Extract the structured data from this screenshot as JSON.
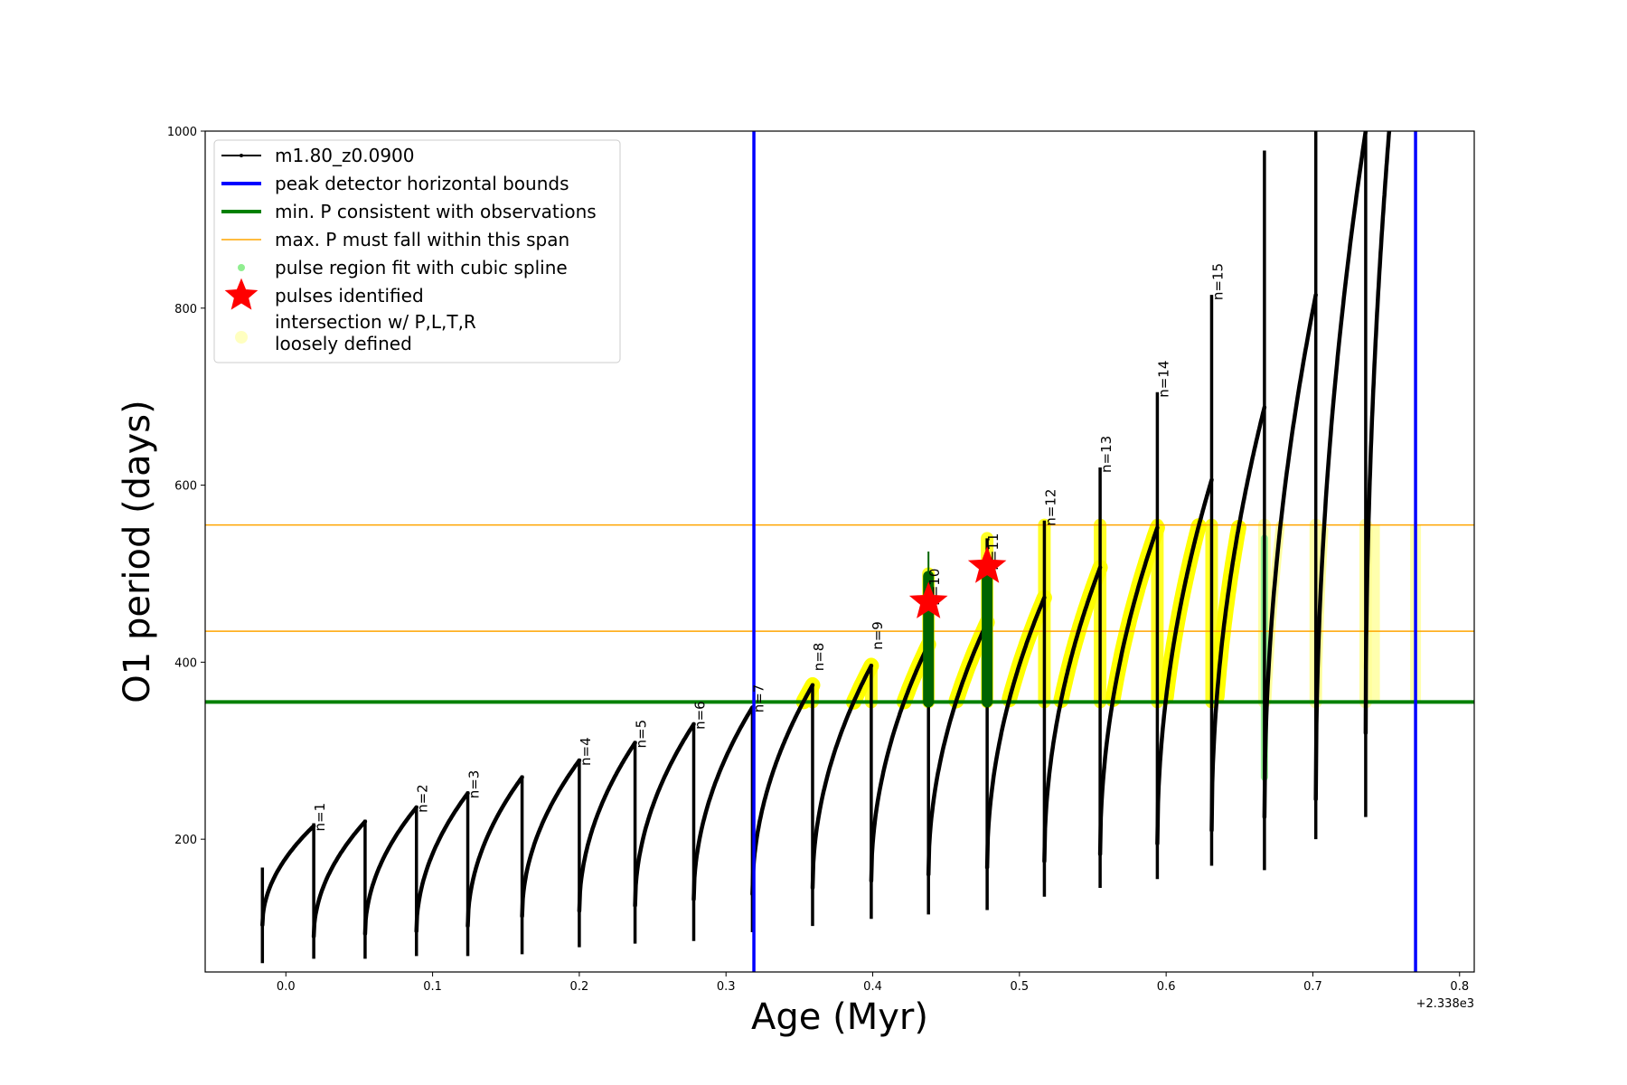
{
  "chart_data": {
    "type": "line",
    "xlabel": "Age (Myr)",
    "ylabel": "O1 period (days)",
    "x_offset_label": "+2.338e3",
    "xlim": [
      -0.055,
      0.81
    ],
    "ylim": [
      50,
      1000
    ],
    "xticks": [
      {
        "value": 0.0,
        "label": "0.0"
      },
      {
        "value": 0.1,
        "label": "0.1"
      },
      {
        "value": 0.2,
        "label": "0.2"
      },
      {
        "value": 0.3,
        "label": "0.3"
      },
      {
        "value": 0.4,
        "label": "0.4"
      },
      {
        "value": 0.5,
        "label": "0.5"
      },
      {
        "value": 0.6,
        "label": "0.6"
      },
      {
        "value": 0.7,
        "label": "0.7"
      },
      {
        "value": 0.8,
        "label": "0.8"
      }
    ],
    "yticks": [
      {
        "value": 200,
        "label": "200"
      },
      {
        "value": 400,
        "label": "400"
      },
      {
        "value": 600,
        "label": "600"
      },
      {
        "value": 800,
        "label": "800"
      },
      {
        "value": 1000,
        "label": "1000"
      }
    ],
    "legend_position": "top-left",
    "legend": [
      {
        "label": "m1.80_z0.0900",
        "marker": "line-dot",
        "color": "#000000"
      },
      {
        "label": "peak detector horizontal bounds",
        "marker": "line",
        "color": "#0000ff"
      },
      {
        "label": "min. P consistent with observations",
        "marker": "line",
        "color": "#008000"
      },
      {
        "label": "max. P must fall within this span",
        "marker": "thin-line",
        "color": "#ffa500"
      },
      {
        "label": "pulse region fit with cubic spline",
        "marker": "dot",
        "color": "#90ee90"
      },
      {
        "label": "pulses identified",
        "marker": "star",
        "color": "#ff0000"
      },
      {
        "label": "intersection w/ P,L,T,R",
        "label2": "loosely defined",
        "marker": "big-dot",
        "color": "#ffffc0"
      }
    ],
    "vertical_bounds": [
      0.319,
      0.77
    ],
    "min_period": 355,
    "max_period_span": [
      435,
      555
    ],
    "colors": {
      "track": "#000000",
      "bounds": "#0000ff",
      "minP": "#008000",
      "maxP": "#ffa500",
      "spline": "#90ee90",
      "star": "#ff0000",
      "highlight": "#ffff00",
      "highlight_pale": "#ffff99",
      "cycle_fill": "#006400"
    },
    "cycles": [
      {
        "start": -0.016,
        "end": 0.019,
        "min": 103,
        "peak": 215
      },
      {
        "start": 0.019,
        "end": 0.054,
        "min": 90,
        "peak": 220
      },
      {
        "start": 0.054,
        "end": 0.089,
        "min": 93,
        "peak": 236
      },
      {
        "start": 0.089,
        "end": 0.124,
        "min": 96,
        "peak": 252
      },
      {
        "start": 0.124,
        "end": 0.161,
        "min": 102,
        "peak": 270
      },
      {
        "start": 0.161,
        "end": 0.2,
        "min": 113,
        "peak": 289
      },
      {
        "start": 0.2,
        "end": 0.238,
        "min": 119,
        "peak": 309
      },
      {
        "start": 0.238,
        "end": 0.278,
        "min": 125,
        "peak": 330
      },
      {
        "start": 0.278,
        "end": 0.318,
        "min": 132,
        "peak": 349
      },
      {
        "start": 0.318,
        "end": 0.359,
        "min": 138,
        "peak": 374
      },
      {
        "start": 0.359,
        "end": 0.399,
        "min": 145,
        "peak": 396
      },
      {
        "start": 0.399,
        "end": 0.438,
        "min": 153,
        "peak": 420
      },
      {
        "start": 0.438,
        "end": 0.478,
        "min": 160,
        "peak": 445
      },
      {
        "start": 0.478,
        "end": 0.517,
        "min": 168,
        "peak": 473
      },
      {
        "start": 0.517,
        "end": 0.555,
        "min": 175,
        "peak": 507
      },
      {
        "start": 0.555,
        "end": 0.594,
        "min": 183,
        "peak": 552
      },
      {
        "start": 0.594,
        "end": 0.631,
        "min": 195,
        "peak": 606
      },
      {
        "start": 0.631,
        "end": 0.667,
        "min": 210,
        "peak": 688
      },
      {
        "start": 0.667,
        "end": 0.702,
        "min": 225,
        "peak": 815
      },
      {
        "start": 0.702,
        "end": 0.736,
        "min": 245,
        "peak": 1000
      },
      {
        "start": 0.736,
        "end": 0.752,
        "min": 320,
        "peak": 1000
      }
    ],
    "spikes": [
      {
        "x": -0.016,
        "low": 60,
        "high": 168
      },
      {
        "x": 0.019,
        "low": 65,
        "high": 218
      },
      {
        "x": 0.054,
        "low": 65,
        "high": 222
      },
      {
        "x": 0.089,
        "low": 68,
        "high": 238
      },
      {
        "x": 0.124,
        "low": 68,
        "high": 254
      },
      {
        "x": 0.161,
        "low": 70,
        "high": 272
      },
      {
        "x": 0.2,
        "low": 78,
        "high": 291
      },
      {
        "x": 0.238,
        "low": 82,
        "high": 311
      },
      {
        "x": 0.278,
        "low": 85,
        "high": 332
      },
      {
        "x": 0.318,
        "low": 95,
        "high": 350
      },
      {
        "x": 0.359,
        "low": 102,
        "high": 376
      },
      {
        "x": 0.399,
        "low": 110,
        "high": 398
      },
      {
        "x": 0.438,
        "low": 115,
        "high": 500
      },
      {
        "x": 0.478,
        "low": 120,
        "high": 540
      },
      {
        "x": 0.517,
        "low": 135,
        "high": 560
      },
      {
        "x": 0.555,
        "low": 145,
        "high": 620
      },
      {
        "x": 0.594,
        "low": 155,
        "high": 705
      },
      {
        "x": 0.631,
        "low": 170,
        "high": 815
      },
      {
        "x": 0.667,
        "low": 165,
        "high": 978
      },
      {
        "x": 0.702,
        "low": 200,
        "high": 1000
      },
      {
        "x": 0.736,
        "low": 225,
        "high": 1000
      }
    ],
    "pulse_labels": [
      {
        "text": "n=1",
        "x": 0.019,
        "y": 215
      },
      {
        "text": "n=2",
        "x": 0.089,
        "y": 236
      },
      {
        "text": "n=3",
        "x": 0.124,
        "y": 252
      },
      {
        "text": "n=4",
        "x": 0.2,
        "y": 289
      },
      {
        "text": "n=5",
        "x": 0.238,
        "y": 309
      },
      {
        "text": "n=6",
        "x": 0.278,
        "y": 330
      },
      {
        "text": "n=7",
        "x": 0.318,
        "y": 349
      },
      {
        "text": "n=8",
        "x": 0.359,
        "y": 396
      },
      {
        "text": "n=9",
        "x": 0.399,
        "y": 420
      },
      {
        "text": "n=10",
        "x": 0.438,
        "y": 470
      },
      {
        "text": "n=11",
        "x": 0.478,
        "y": 510
      },
      {
        "text": "n=12",
        "x": 0.517,
        "y": 560
      },
      {
        "text": "n=13",
        "x": 0.555,
        "y": 620
      },
      {
        "text": "n=14",
        "x": 0.594,
        "y": 705
      },
      {
        "text": "n=15",
        "x": 0.631,
        "y": 815
      }
    ],
    "pulses_identified": [
      {
        "x": 0.438,
        "y": 468
      },
      {
        "x": 0.478,
        "y": 508
      }
    ],
    "green_pulse_columns": [
      {
        "x": 0.438,
        "low": 355,
        "high": 497,
        "thin_top": 525
      },
      {
        "x": 0.478,
        "low": 355,
        "high": 497
      }
    ],
    "spline_region": {
      "x": 0.667,
      "low": 270,
      "high": 540
    }
  }
}
